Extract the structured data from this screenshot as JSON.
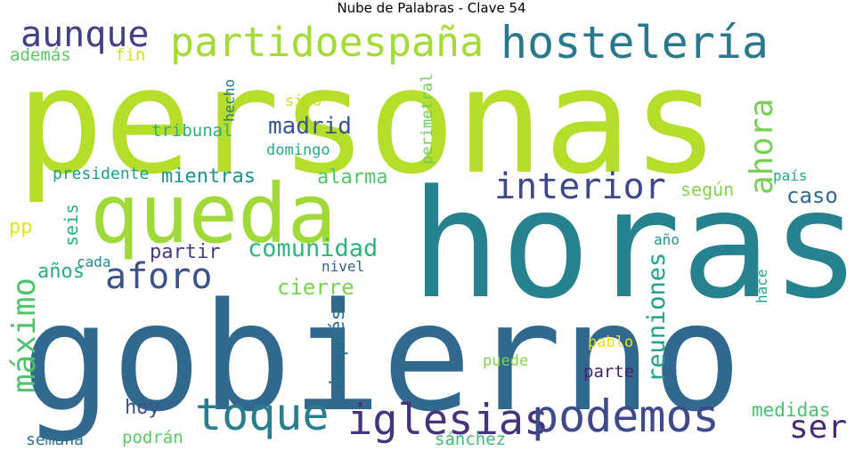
{
  "title": "Nube de Palabras - Clave 54",
  "words": [
    {
      "text": "personas",
      "color": "#b5de2b"
    },
    {
      "text": "horas",
      "color": "#26828e"
    },
    {
      "text": "gobierno",
      "color": "#31688e"
    },
    {
      "text": "queda",
      "color": "#a0da39"
    },
    {
      "text": "hostelería",
      "color": "#2a788e"
    },
    {
      "text": "partidoespaña",
      "color": "#a5db36"
    },
    {
      "text": "aunque",
      "color": "#433e85"
    },
    {
      "text": "además",
      "color": "#5ec962"
    },
    {
      "text": "fin",
      "color": "#d2e21b"
    },
    {
      "text": "hecho",
      "color": "#2a768e"
    },
    {
      "text": "sido",
      "color": "#c8e020"
    },
    {
      "text": "perimetral",
      "color": "#6ccd5a"
    },
    {
      "text": "ahora",
      "color": "#75d054"
    },
    {
      "text": "madrid",
      "color": "#39568c"
    },
    {
      "text": "tribunal",
      "color": "#2ab07f"
    },
    {
      "text": "domingo",
      "color": "#25ab82"
    },
    {
      "text": "interior",
      "color": "#3e4989"
    },
    {
      "text": "presidente",
      "color": "#1f9e89"
    },
    {
      "text": "mientras",
      "color": "#21918c"
    },
    {
      "text": "alarma",
      "color": "#52c569"
    },
    {
      "text": "país",
      "color": "#22a884"
    },
    {
      "text": "según",
      "color": "#84d44b"
    },
    {
      "text": "caso",
      "color": "#31688e"
    },
    {
      "text": "pp",
      "color": "#e5e419"
    },
    {
      "text": "seis",
      "color": "#2db27d"
    },
    {
      "text": "máximo",
      "color": "#50c46a"
    },
    {
      "text": "años",
      "color": "#28ae80"
    },
    {
      "text": "aforo",
      "color": "#3b528b"
    },
    {
      "text": "partir",
      "color": "#443983"
    },
    {
      "text": "comunidad",
      "color": "#2fb47c"
    },
    {
      "text": "cada",
      "color": "#24868e"
    },
    {
      "text": "nivel",
      "color": "#355f8d"
    },
    {
      "text": "cierre",
      "color": "#7ad151"
    },
    {
      "text": "año",
      "color": "#1f968b"
    },
    {
      "text": "reuniones",
      "color": "#1fa287"
    },
    {
      "text": "hace",
      "color": "#21a585"
    },
    {
      "text": "después",
      "color": "#2c718e"
    },
    {
      "text": "pablo",
      "color": "#e2e418"
    },
    {
      "text": "puede",
      "color": "#7fd34e"
    },
    {
      "text": "parte",
      "color": "#482173"
    },
    {
      "text": "hoy",
      "color": "#3b528b"
    },
    {
      "text": "toque",
      "color": "#287d8e"
    },
    {
      "text": "iglesias",
      "color": "#46337e"
    },
    {
      "text": "podemos",
      "color": "#3e4a89"
    },
    {
      "text": "medidas",
      "color": "#4ac16d"
    },
    {
      "text": "ser",
      "color": "#472c7a"
    },
    {
      "text": "semana",
      "color": "#2c718e"
    },
    {
      "text": "podrán",
      "color": "#5ec962"
    },
    {
      "text": "sánchez",
      "color": "#3fbc73"
    }
  ]
}
